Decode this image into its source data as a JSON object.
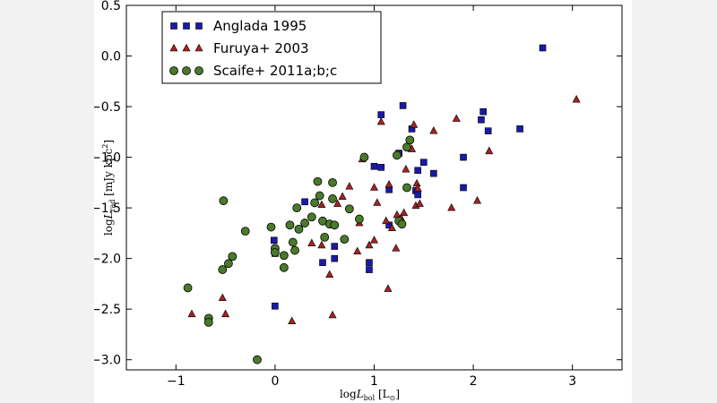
{
  "chart_data": {
    "type": "scatter",
    "title": "",
    "xlabel": "log L_bol [L_⊙]",
    "ylabel": "log L_rad [mJy kpc²]",
    "xlim": [
      -1.5,
      3.5
    ],
    "ylim": [
      -3.1,
      0.5
    ],
    "xticks": [
      -1,
      0,
      1,
      2,
      3
    ],
    "yticks": [
      0.5,
      0.0,
      -0.5,
      -1.0,
      -1.5,
      -2.0,
      -2.5,
      -3.0
    ],
    "grid": false,
    "legend_position": "top-left",
    "series": [
      {
        "name": "Anglada 1995",
        "marker": "square",
        "color": "#1a1aa6",
        "points": [
          [
            -0.01,
            -1.82
          ],
          [
            0.0,
            -1.95
          ],
          [
            0.0,
            -2.47
          ],
          [
            0.3,
            -1.44
          ],
          [
            0.48,
            -2.04
          ],
          [
            0.6,
            -1.88
          ],
          [
            0.6,
            -2.0
          ],
          [
            0.95,
            -2.04
          ],
          [
            0.95,
            -2.11
          ],
          [
            1.0,
            -1.09
          ],
          [
            1.07,
            -1.1
          ],
          [
            1.07,
            -0.58
          ],
          [
            1.15,
            -1.32
          ],
          [
            1.15,
            -1.67
          ],
          [
            1.25,
            -0.96
          ],
          [
            1.29,
            -0.49
          ],
          [
            1.38,
            -0.72
          ],
          [
            1.42,
            -1.33
          ],
          [
            1.44,
            -1.37
          ],
          [
            1.44,
            -1.13
          ],
          [
            1.5,
            -1.05
          ],
          [
            1.6,
            -1.16
          ],
          [
            1.9,
            -1.0
          ],
          [
            1.9,
            -1.3
          ],
          [
            2.08,
            -0.63
          ],
          [
            2.1,
            -0.55
          ],
          [
            2.15,
            -0.74
          ],
          [
            2.47,
            -0.72
          ],
          [
            2.7,
            0.08
          ]
        ]
      },
      {
        "name": "Furuya+ 2003",
        "marker": "triangle",
        "color": "#a62222",
        "points": [
          [
            -0.84,
            -2.55
          ],
          [
            -0.53,
            -2.39
          ],
          [
            -0.5,
            -2.55
          ],
          [
            0.17,
            -2.62
          ],
          [
            0.37,
            -1.85
          ],
          [
            0.47,
            -1.87
          ],
          [
            0.47,
            -1.47
          ],
          [
            0.55,
            -2.16
          ],
          [
            0.58,
            -2.56
          ],
          [
            0.63,
            -1.46
          ],
          [
            0.68,
            -1.39
          ],
          [
            0.75,
            -1.29
          ],
          [
            0.83,
            -1.93
          ],
          [
            0.85,
            -1.65
          ],
          [
            0.88,
            -1.02
          ],
          [
            0.95,
            -1.87
          ],
          [
            1.0,
            -1.82
          ],
          [
            1.0,
            -1.3
          ],
          [
            1.03,
            -1.45
          ],
          [
            1.07,
            -0.65
          ],
          [
            1.12,
            -1.63
          ],
          [
            1.14,
            -2.3
          ],
          [
            1.15,
            -1.27
          ],
          [
            1.18,
            -1.7
          ],
          [
            1.22,
            -1.9
          ],
          [
            1.23,
            -1.57
          ],
          [
            1.27,
            -1.6
          ],
          [
            1.3,
            -1.55
          ],
          [
            1.32,
            -1.12
          ],
          [
            1.38,
            -0.92
          ],
          [
            1.4,
            -0.68
          ],
          [
            1.42,
            -1.48
          ],
          [
            1.43,
            -1.26
          ],
          [
            1.44,
            -1.31
          ],
          [
            1.46,
            -1.46
          ],
          [
            1.6,
            -0.74
          ],
          [
            1.78,
            -1.5
          ],
          [
            1.83,
            -0.62
          ],
          [
            2.04,
            -1.43
          ],
          [
            2.16,
            -0.94
          ],
          [
            3.04,
            -0.43
          ]
        ]
      },
      {
        "name": "Scaife+ 2011a;b;c",
        "marker": "circle",
        "color": "#4a7a2a",
        "points": [
          [
            -0.88,
            -2.29
          ],
          [
            -0.67,
            -2.59
          ],
          [
            -0.67,
            -2.63
          ],
          [
            -0.52,
            -1.43
          ],
          [
            -0.53,
            -2.11
          ],
          [
            -0.47,
            -2.05
          ],
          [
            -0.43,
            -1.98
          ],
          [
            -0.3,
            -1.73
          ],
          [
            -0.18,
            -3.0
          ],
          [
            -0.04,
            -1.69
          ],
          [
            0.0,
            -1.9
          ],
          [
            0.0,
            -1.94
          ],
          [
            0.09,
            -2.09
          ],
          [
            0.09,
            -1.97
          ],
          [
            0.15,
            -1.67
          ],
          [
            0.18,
            -1.84
          ],
          [
            0.2,
            -1.92
          ],
          [
            0.22,
            -1.5
          ],
          [
            0.24,
            -1.71
          ],
          [
            0.3,
            -1.65
          ],
          [
            0.37,
            -1.59
          ],
          [
            0.4,
            -1.45
          ],
          [
            0.43,
            -1.24
          ],
          [
            0.45,
            -1.38
          ],
          [
            0.48,
            -1.63
          ],
          [
            0.5,
            -1.79
          ],
          [
            0.55,
            -1.66
          ],
          [
            0.58,
            -1.25
          ],
          [
            0.58,
            -1.41
          ],
          [
            0.6,
            -1.67
          ],
          [
            0.7,
            -1.81
          ],
          [
            0.75,
            -1.51
          ],
          [
            0.85,
            -1.61
          ],
          [
            0.9,
            -1.0
          ],
          [
            1.23,
            -0.98
          ],
          [
            1.25,
            -1.63
          ],
          [
            1.28,
            -1.66
          ],
          [
            1.33,
            -0.9
          ],
          [
            1.33,
            -1.3
          ],
          [
            1.36,
            -0.83
          ]
        ]
      }
    ]
  }
}
